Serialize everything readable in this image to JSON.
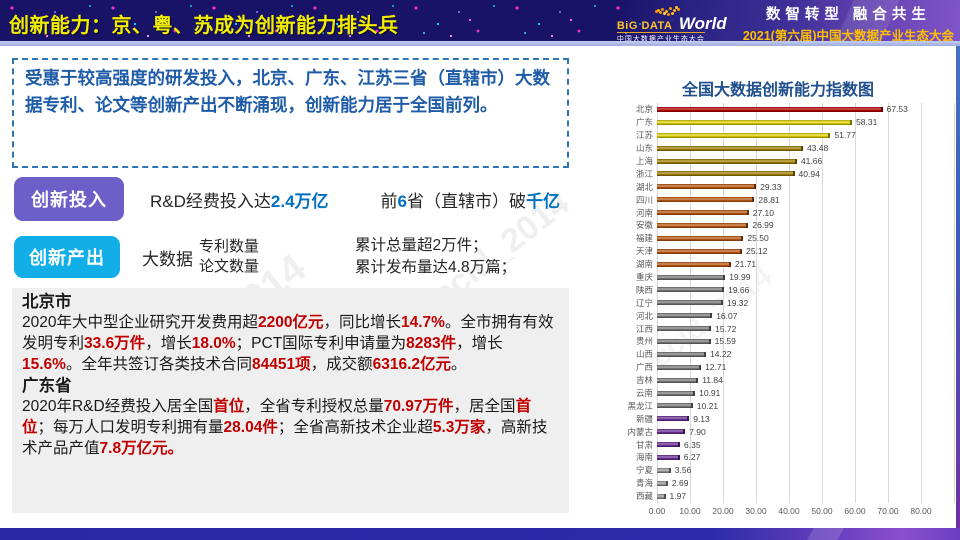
{
  "header": {
    "title": "创新能力：京、粤、苏成为创新能力排头兵",
    "logo_big": "BiG DATA",
    "logo_world": "World",
    "logo_sub": "中国大数据产业生态大会",
    "slogan": "数智转型  融合共生",
    "event": "2021(第六届)中国大数据产业生态大会"
  },
  "colors": {
    "emphasis_blue": "#0070C0",
    "emphasis_red": "#C00000",
    "investment_badge": "#6C5FC7",
    "output_badge": "#12AEE8",
    "title_yellow": "#F2EE00",
    "intro_blue": "#1F5CA8"
  },
  "intro": {
    "text": "受惠于较高强度的研发投入，北京、广东、江苏三省（直辖市）大数据专利、论文等创新产出不断涌现，创新能力居于全国前列。"
  },
  "investment": {
    "label": "创新投入",
    "part1": [
      {
        "t": "R&D经费投入达"
      },
      {
        "t": "2.4万亿",
        "c": "blue"
      }
    ],
    "part2": [
      {
        "t": "前"
      },
      {
        "t": "6",
        "c": "blue"
      },
      {
        "t": "省（直辖市）破"
      },
      {
        "t": "千亿",
        "c": "blue"
      }
    ]
  },
  "output": {
    "label": "创新产出",
    "prefix": "大数据",
    "stack": [
      "专利数量",
      "论文数量"
    ],
    "results": [
      "累计总量超2万件；",
      "累计发布量达4.8万篇；"
    ]
  },
  "details": {
    "beijing": {
      "heading": "北京市",
      "segments": [
        {
          "t": "2020年大中型企业研究开发费用超"
        },
        {
          "t": "2200亿元",
          "c": "red"
        },
        {
          "t": "，同比增长"
        },
        {
          "t": "14.7%",
          "c": "red"
        },
        {
          "t": "。全市拥有有效发明专利"
        },
        {
          "t": "33.6万件",
          "c": "red"
        },
        {
          "t": "，增长"
        },
        {
          "t": "18.0%",
          "c": "red"
        },
        {
          "t": "；PCT国际专利申请量为"
        },
        {
          "t": "8283件",
          "c": "red"
        },
        {
          "t": "，增长"
        },
        {
          "t": "15.6%",
          "c": "red"
        },
        {
          "t": "。全年共签订各类技术合同"
        },
        {
          "t": "84451项",
          "c": "red"
        },
        {
          "t": "，成交额"
        },
        {
          "t": "6316.2亿元",
          "c": "red"
        },
        {
          "t": "。"
        }
      ]
    },
    "guangdong": {
      "heading": "广东省",
      "segments": [
        {
          "t": "2020年R&D经费投入居全国"
        },
        {
          "t": "首位",
          "c": "red"
        },
        {
          "t": "，全省专利授权总量"
        },
        {
          "t": "70.97万件",
          "c": "red"
        },
        {
          "t": "，居全国"
        },
        {
          "t": "首位",
          "c": "red"
        },
        {
          "t": "；每万人口发明专利拥有量"
        },
        {
          "t": "28.04件",
          "c": "red"
        },
        {
          "t": "；全省高新技术企业超"
        },
        {
          "t": "5.3万家",
          "c": "red"
        },
        {
          "t": "，高新技术产品产值"
        },
        {
          "t": "7.8万亿元。",
          "c": "red"
        }
      ]
    }
  },
  "watermark": "ccid_2014",
  "chart_data": {
    "type": "bar",
    "orientation": "horizontal",
    "title": "全国大数据创新能力指数图",
    "categories": [
      "北京",
      "广东",
      "江苏",
      "山东",
      "上海",
      "浙江",
      "湖北",
      "四川",
      "河南",
      "安徽",
      "福建",
      "天津",
      "湖南",
      "重庆",
      "陕西",
      "辽宁",
      "河北",
      "江西",
      "贵州",
      "山西",
      "广西",
      "吉林",
      "云南",
      "黑龙江",
      "新疆",
      "内蒙古",
      "甘肃",
      "海南",
      "宁夏",
      "青海",
      "西藏"
    ],
    "values": [
      67.53,
      58.31,
      51.77,
      43.48,
      41.66,
      40.94,
      29.33,
      28.81,
      27.1,
      26.99,
      25.5,
      25.12,
      21.71,
      19.99,
      19.66,
      19.32,
      16.07,
      15.72,
      15.59,
      14.22,
      12.71,
      11.84,
      10.91,
      10.21,
      9.13,
      7.9,
      6.35,
      6.27,
      3.56,
      2.69,
      1.97
    ],
    "value_labels": [
      "67.53",
      "58.31",
      "51.77",
      "43.48",
      "41.66",
      "40.94",
      "29.33",
      "28.81",
      "27.10",
      "26.99",
      "25.50",
      "25.12",
      "21.71",
      "19.99",
      "19.66",
      "19.32",
      "16.07",
      "15.72",
      "15.59",
      "14.22",
      "12.71",
      "11.84",
      "10.91",
      "10.21",
      "9.13",
      "7.90",
      "6.35",
      "6.27",
      "3.56",
      "2.69",
      "1.97"
    ],
    "bar_colors": [
      "#C00000",
      "#E8DC00",
      "#E8DC00",
      "#A98600",
      "#A98600",
      "#A98600",
      "#C55A11",
      "#C55A11",
      "#C55A11",
      "#C55A11",
      "#C55A11",
      "#C55A11",
      "#C55A11",
      "#808080",
      "#808080",
      "#808080",
      "#808080",
      "#808080",
      "#808080",
      "#808080",
      "#808080",
      "#808080",
      "#808080",
      "#808080",
      "#702FA0",
      "#702FA0",
      "#702FA0",
      "#702FA0",
      "#9E9E9E",
      "#9E9E9E",
      "#9E9E9E"
    ],
    "xlim": [
      0,
      90
    ],
    "xticks": [
      "0.00",
      "10.00",
      "20.00",
      "30.00",
      "40.00",
      "50.00",
      "60.00",
      "70.00",
      "80.00"
    ],
    "grid": true,
    "legend": false
  }
}
